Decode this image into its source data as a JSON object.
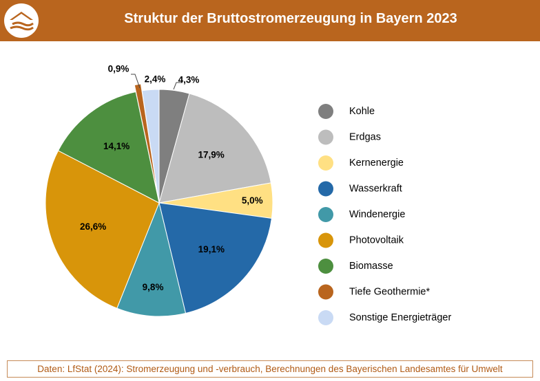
{
  "header": {
    "title": "Struktur der Bruttostromerzeugung in Bayern 2023",
    "background_color": "#b9651e",
    "logo_icon": "landesamt-logo-icon"
  },
  "chart_data": {
    "type": "pie",
    "title": "Struktur der Bruttostromerzeugung in Bayern 2023",
    "categories": [
      "Kohle",
      "Erdgas",
      "Kernenergie",
      "Wasserkraft",
      "Windenergie",
      "Photovoltaik",
      "Biomasse",
      "Tiefe Geothermie*",
      "Sonstige Energieträger"
    ],
    "values": [
      4.3,
      17.9,
      5.0,
      19.1,
      9.8,
      26.6,
      14.1,
      0.9,
      2.4
    ],
    "labels": [
      "4,3%",
      "17,9%",
      "5,0%",
      "19,1%",
      "9,8%",
      "26,6%",
      "14,1%",
      "0,9%",
      "2,4%"
    ],
    "colors": [
      "#7f7f7f",
      "#bdbdbd",
      "#ffe083",
      "#2469a8",
      "#4199a8",
      "#d8950a",
      "#4d8f3f",
      "#b9651e",
      "#c9daf4"
    ],
    "exploded": [
      "Tiefe Geothermie*"
    ],
    "legend_position": "right"
  },
  "footer": {
    "source": "Daten: LfStat (2024): Stromerzeugung und -verbrauch, Berechnungen des Bayerischen Landesamtes für Umwelt"
  }
}
